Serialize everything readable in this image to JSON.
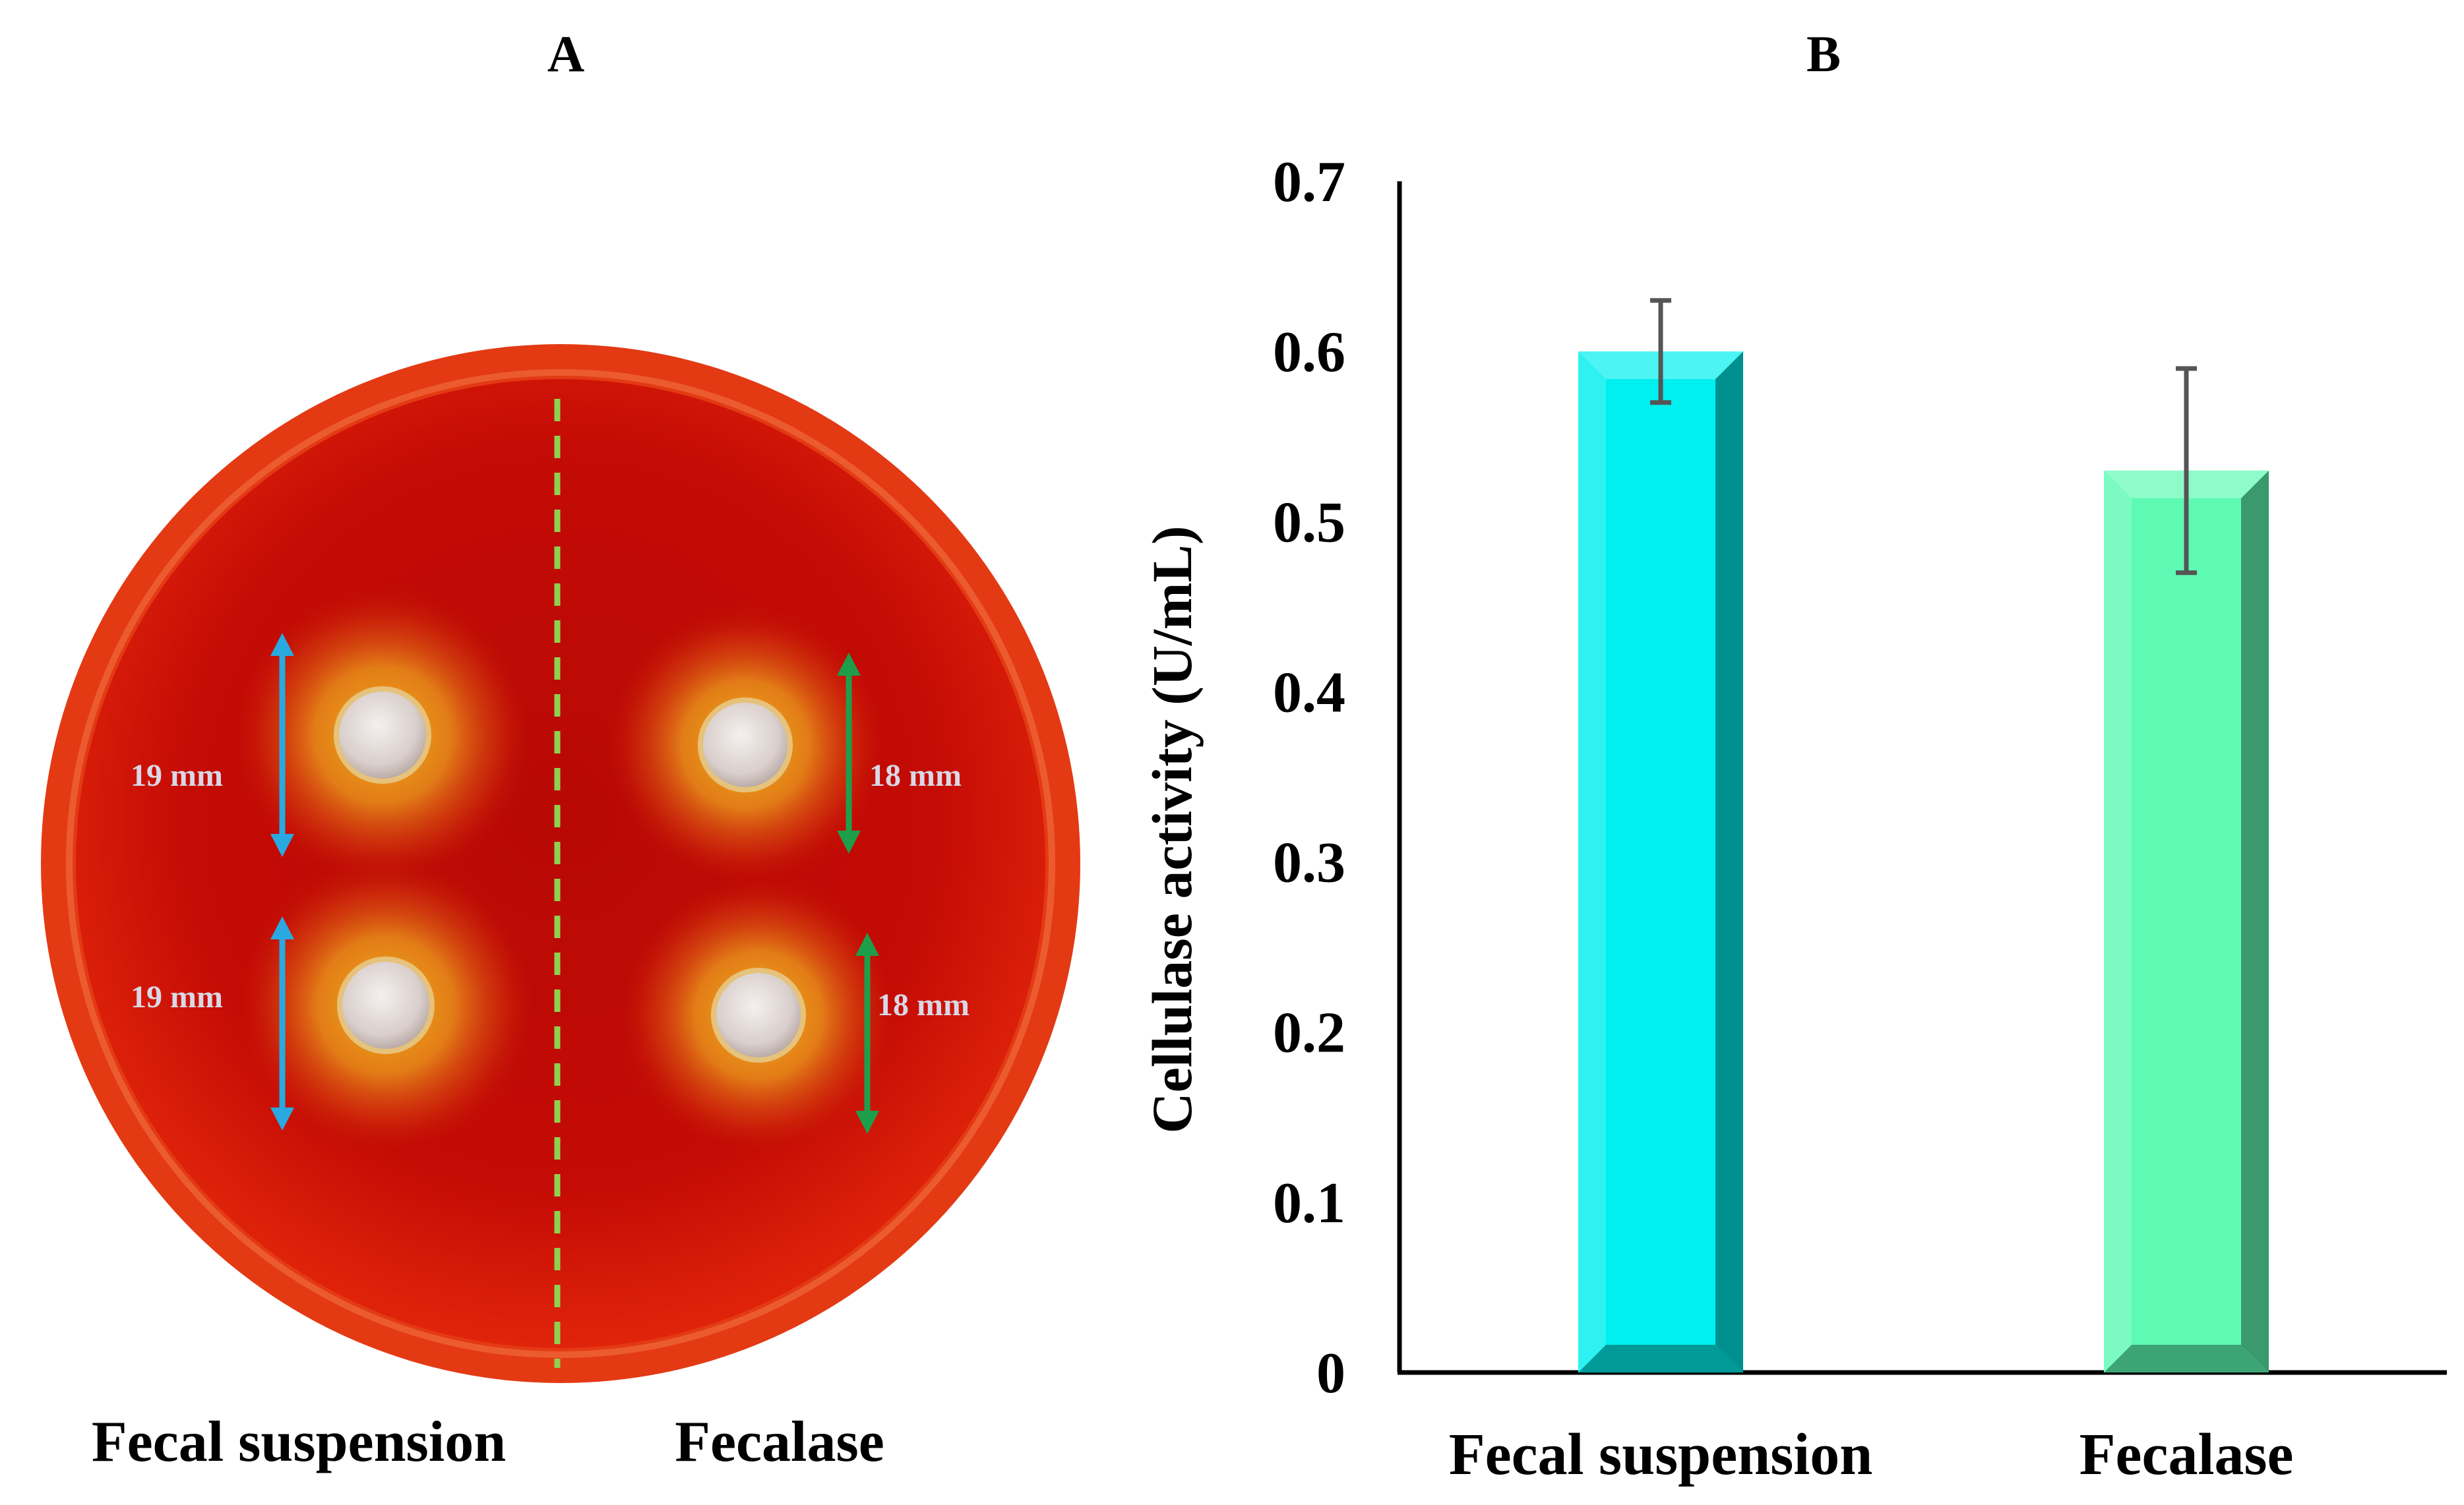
{
  "panel_a": {
    "letter": "A",
    "left_caption": "Fecal suspension",
    "right_caption": "Fecalase",
    "zones": [
      {
        "label": "19 mm",
        "color": "#29a9e0"
      },
      {
        "label": "19 mm",
        "color": "#29a9e0"
      },
      {
        "label": "18 mm",
        "color": "#1e9e4a"
      },
      {
        "label": "18 mm",
        "color": "#1e9e4a"
      }
    ],
    "colors": {
      "agar": "#cc0a05",
      "divider": "#8fd14f"
    }
  },
  "panel_b": {
    "letter": "B"
  },
  "chart_data": {
    "type": "bar",
    "title": "",
    "categories": [
      "Fecal suspension",
      "Fecalase"
    ],
    "values": [
      0.6,
      0.53
    ],
    "errors": [
      0.03,
      0.06
    ],
    "colors": [
      "#00f0f0",
      "#5efab4"
    ],
    "side_colors": [
      "#00908f",
      "#3a9a6c"
    ],
    "xlabel": "",
    "ylabel": "Cellulase activity (U/mL)",
    "ylim": [
      0,
      0.7
    ],
    "yticks": [
      "0",
      "0.1",
      "0.2",
      "0.3",
      "0.4",
      "0.5",
      "0.6",
      "0.7"
    ],
    "grid": false
  }
}
